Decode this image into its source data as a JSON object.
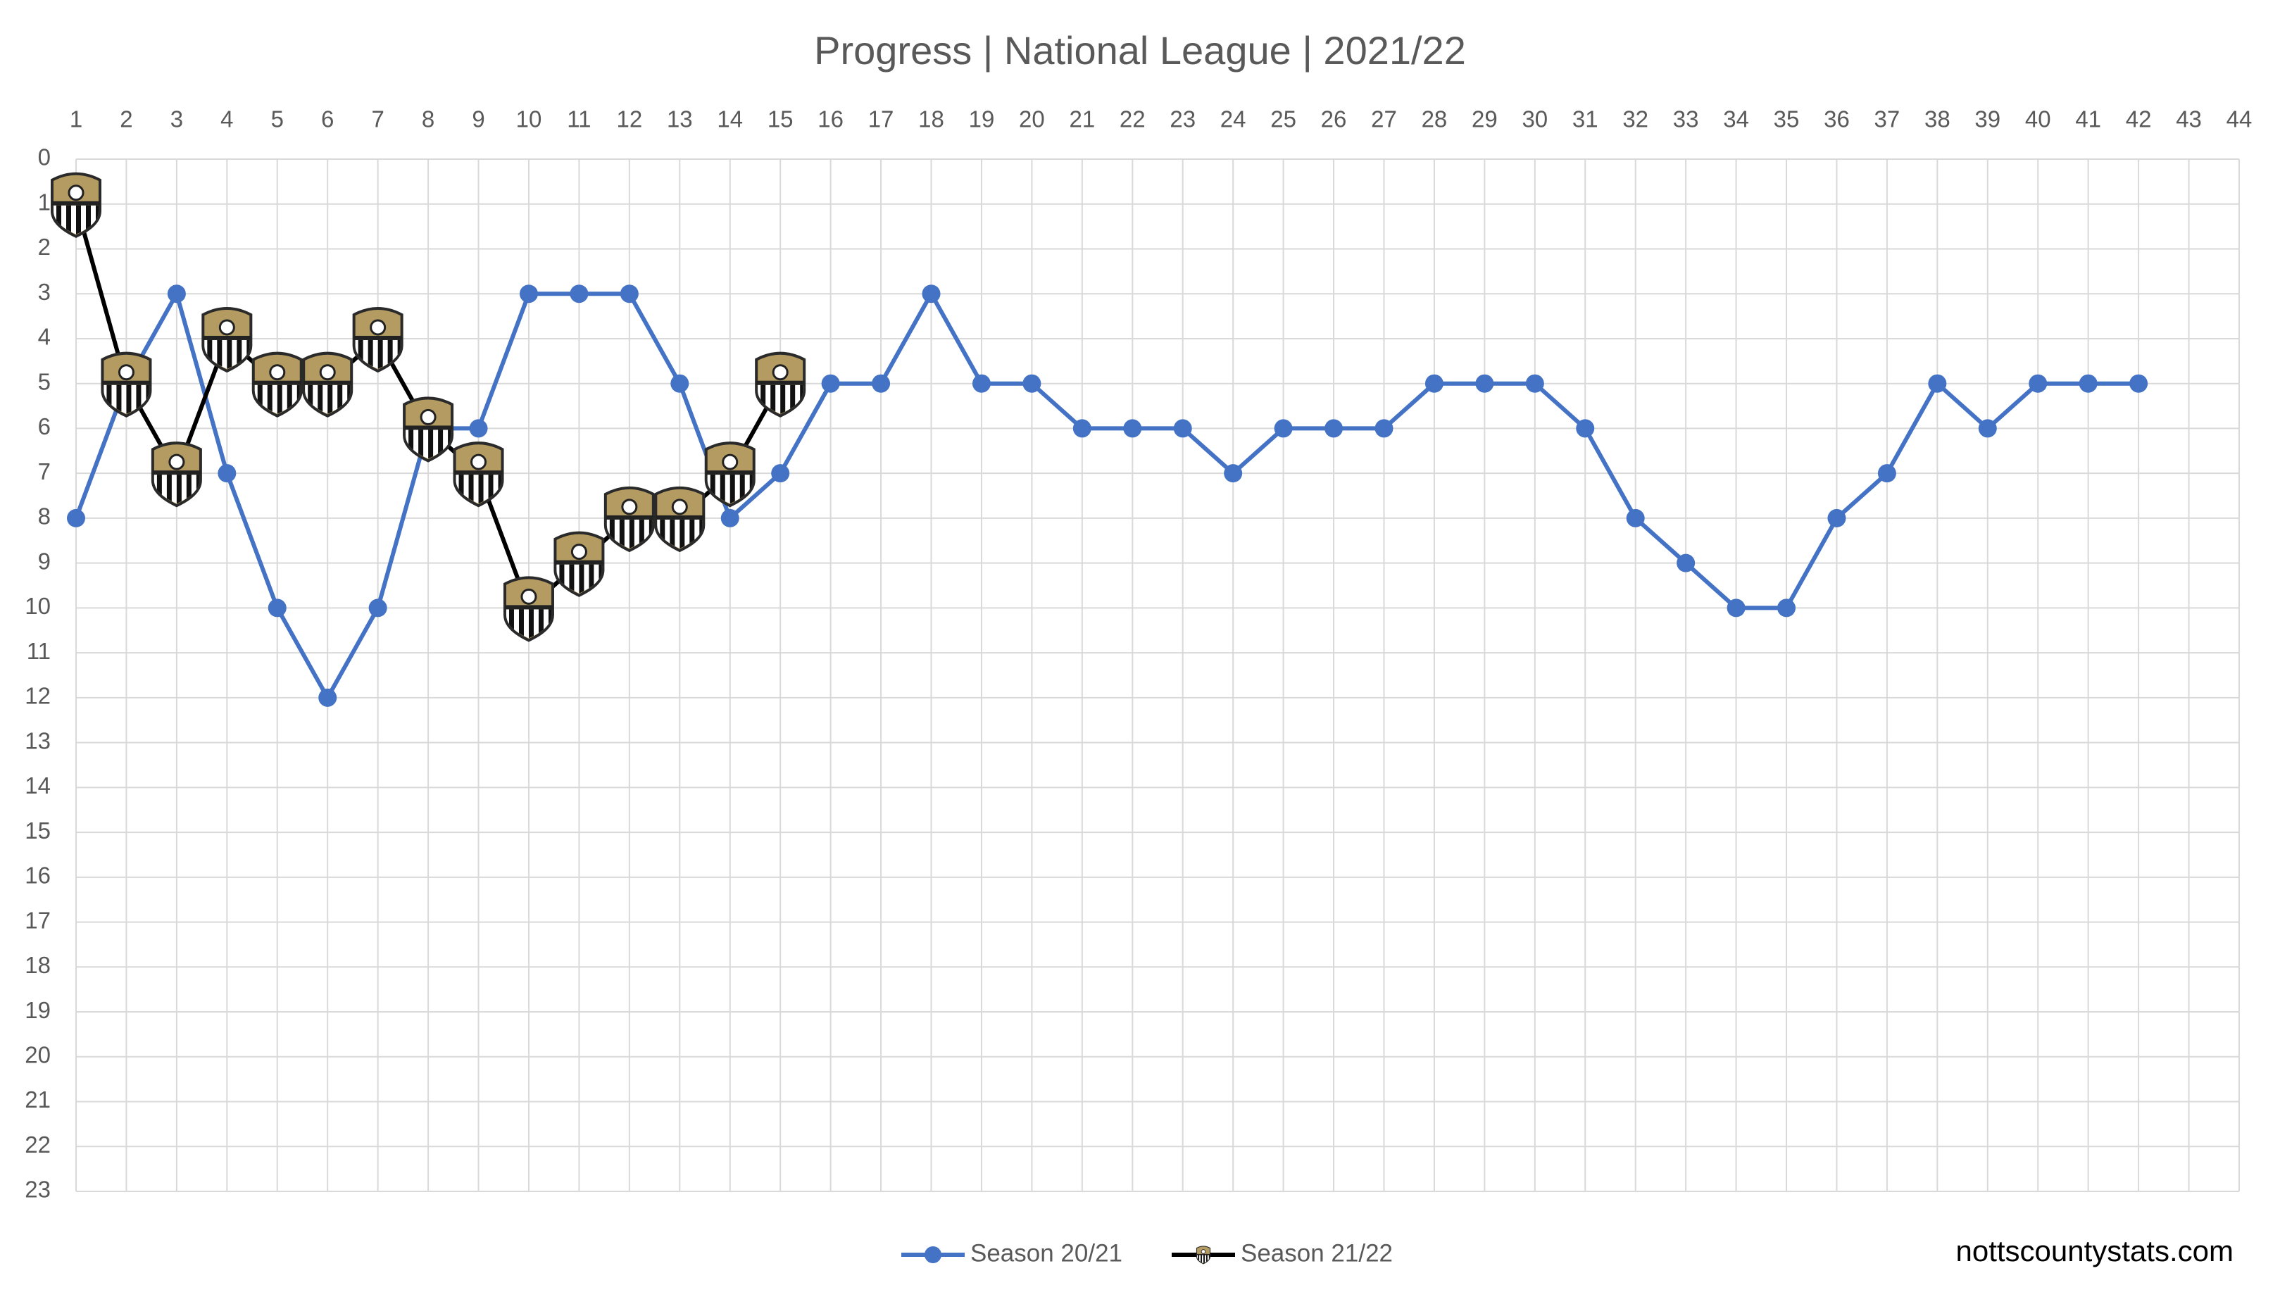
{
  "chart_data": {
    "type": "line",
    "title": "Progress | National League | 2021/22",
    "x": [
      1,
      2,
      3,
      4,
      5,
      6,
      7,
      8,
      9,
      10,
      11,
      12,
      13,
      14,
      15,
      16,
      17,
      18,
      19,
      20,
      21,
      22,
      23,
      24,
      25,
      26,
      27,
      28,
      29,
      30,
      31,
      32,
      33,
      34,
      35,
      36,
      37,
      38,
      39,
      40,
      41,
      42
    ],
    "series": [
      {
        "name": "Season 20/21",
        "color": "#4472c4",
        "marker": "circle",
        "values": [
          8,
          5,
          3,
          7,
          10,
          12,
          10,
          6,
          6,
          3,
          3,
          3,
          5,
          8,
          7,
          5,
          5,
          3,
          5,
          5,
          6,
          6,
          6,
          7,
          6,
          6,
          6,
          5,
          5,
          5,
          6,
          8,
          9,
          10,
          10,
          8,
          7,
          5,
          6,
          5,
          5,
          5
        ]
      },
      {
        "name": "Season 21/22",
        "color": "#000000",
        "marker": "badge",
        "values": [
          1,
          5,
          7,
          4,
          5,
          5,
          4,
          6,
          7,
          10,
          9,
          8,
          8,
          7,
          5,
          null,
          null,
          null,
          null,
          null,
          null,
          null,
          null,
          null,
          null,
          null,
          null,
          null,
          null,
          null,
          null,
          null,
          null,
          null,
          null,
          null,
          null,
          null,
          null,
          null,
          null,
          null
        ]
      }
    ],
    "xlim": [
      1,
      44
    ],
    "xticks": [
      1,
      2,
      3,
      4,
      5,
      6,
      7,
      8,
      9,
      10,
      11,
      12,
      13,
      14,
      15,
      16,
      17,
      18,
      19,
      20,
      21,
      22,
      23,
      24,
      25,
      26,
      27,
      28,
      29,
      30,
      31,
      32,
      33,
      34,
      35,
      36,
      37,
      38,
      39,
      40,
      41,
      42,
      43,
      44
    ],
    "ylim": [
      0,
      23
    ],
    "yticks": [
      0,
      1,
      2,
      3,
      4,
      5,
      6,
      7,
      8,
      9,
      10,
      11,
      12,
      13,
      14,
      15,
      16,
      17,
      18,
      19,
      20,
      21,
      22,
      23
    ],
    "y_inverted": true,
    "grid": true,
    "legend": "bottom",
    "watermark": "nottscountystats.com"
  }
}
